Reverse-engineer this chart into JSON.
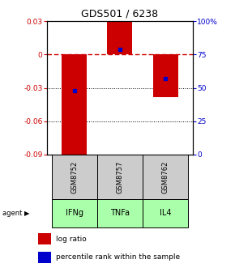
{
  "title": "GDS501 / 6238",
  "samples": [
    "GSM8752",
    "GSM8757",
    "GSM8762"
  ],
  "agents": [
    "IFNg",
    "TNFa",
    "IL4"
  ],
  "log_ratios": [
    -0.093,
    0.03,
    -0.038
  ],
  "percentile_ranks": [
    0.48,
    0.79,
    0.57
  ],
  "ylim_left": [
    -0.09,
    0.03
  ],
  "ylim_right": [
    0.0,
    1.0
  ],
  "yticks_left": [
    0.03,
    0.0,
    -0.03,
    -0.06,
    -0.09
  ],
  "yticks_right": [
    1.0,
    0.75,
    0.5,
    0.25,
    0.0
  ],
  "ytick_labels_left": [
    "0.03",
    "0",
    "-0.03",
    "-0.06",
    "-0.09"
  ],
  "ytick_labels_right": [
    "100%",
    "75",
    "50",
    "25",
    "0"
  ],
  "bar_color": "#cc0000",
  "dot_color": "#0000cc",
  "sample_bg_color": "#cccccc",
  "agent_bg_color": "#aaffaa",
  "zero_line_color": "#cc0000",
  "grid_color": "#000000",
  "legend_bar_label": "log ratio",
  "legend_dot_label": "percentile rank within the sample",
  "bar_width": 0.55
}
